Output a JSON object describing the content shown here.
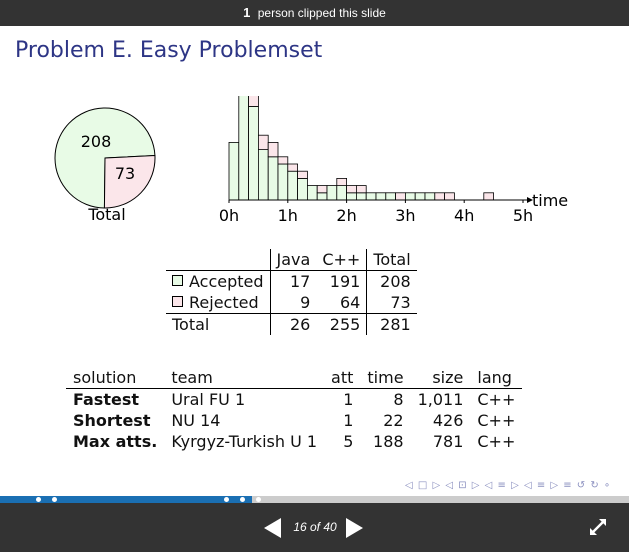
{
  "header": {
    "clip_count": "1",
    "clip_text": "person clipped this slide"
  },
  "slide": {
    "title": "Problem E. Easy Problemset",
    "pie": {
      "accepted": "208",
      "rejected": "73",
      "caption": "Total"
    },
    "histogram": {
      "xlabel": "time",
      "ticks": [
        "0h",
        "1h",
        "2h",
        "3h",
        "4h",
        "5h"
      ]
    },
    "summary_table": {
      "headers": [
        "Java",
        "C++",
        "Total"
      ],
      "rows": [
        {
          "label": "Accepted",
          "java": "17",
          "cpp": "191",
          "total": "208"
        },
        {
          "label": "Rejected",
          "java": "9",
          "cpp": "64",
          "total": "73"
        },
        {
          "label": "Total",
          "java": "26",
          "cpp": "255",
          "total": "281"
        }
      ]
    },
    "solutions_table": {
      "headers": [
        "solution",
        "team",
        "att",
        "time",
        "size",
        "lang"
      ],
      "rows": [
        {
          "solution": "Fastest",
          "team": "Ural FU 1",
          "att": "1",
          "time": "8",
          "size": "1,011",
          "lang": "C++"
        },
        {
          "solution": "Shortest",
          "team": "NU 14",
          "att": "1",
          "time": "22",
          "size": "426",
          "lang": "C++"
        },
        {
          "solution": "Max atts.",
          "team": "Kyrgyz-Turkish U 1",
          "att": "5",
          "time": "188",
          "size": "781",
          "lang": "C++"
        }
      ]
    },
    "nav_symbols": "◁ □ ▷ ◁ ⊡ ▷ ◁ ≡ ▷ ◁ ≡ ▷ ≡ ↺ ↻ ∘"
  },
  "footer": {
    "page_indicator": "16 of 40",
    "progress_fraction": 0.4
  },
  "colors": {
    "accepted": "#e8fbe6",
    "rejected": "#fbe6ea",
    "title": "#2d3585",
    "bar": "#333333",
    "progress": "#1a6fb3"
  },
  "chart_data": [
    {
      "type": "pie",
      "labels": [
        "Accepted",
        "Rejected"
      ],
      "values": [
        208,
        73
      ],
      "title": "Total"
    },
    {
      "type": "bar",
      "stacked": true,
      "xlabel": "time",
      "x_ticks": [
        "0h",
        "1h",
        "2h",
        "3h",
        "4h",
        "5h"
      ],
      "xlim": [
        0,
        300
      ],
      "bin_minutes": 10,
      "series": [
        {
          "name": "Accepted",
          "values": [
            8,
            15,
            13,
            7,
            6,
            5,
            4,
            3,
            2,
            1,
            2,
            2,
            1,
            1,
            1,
            1,
            1,
            0,
            1,
            1,
            1,
            0,
            0,
            0,
            0,
            0,
            0,
            0,
            0,
            0
          ]
        },
        {
          "name": "Rejected",
          "values": [
            0,
            2,
            2,
            2,
            2,
            1,
            1,
            1,
            0,
            1,
            0,
            1,
            1,
            1,
            0,
            0,
            0,
            1,
            0,
            0,
            0,
            1,
            1,
            0,
            0,
            0,
            1,
            0,
            0,
            0
          ]
        }
      ]
    }
  ]
}
